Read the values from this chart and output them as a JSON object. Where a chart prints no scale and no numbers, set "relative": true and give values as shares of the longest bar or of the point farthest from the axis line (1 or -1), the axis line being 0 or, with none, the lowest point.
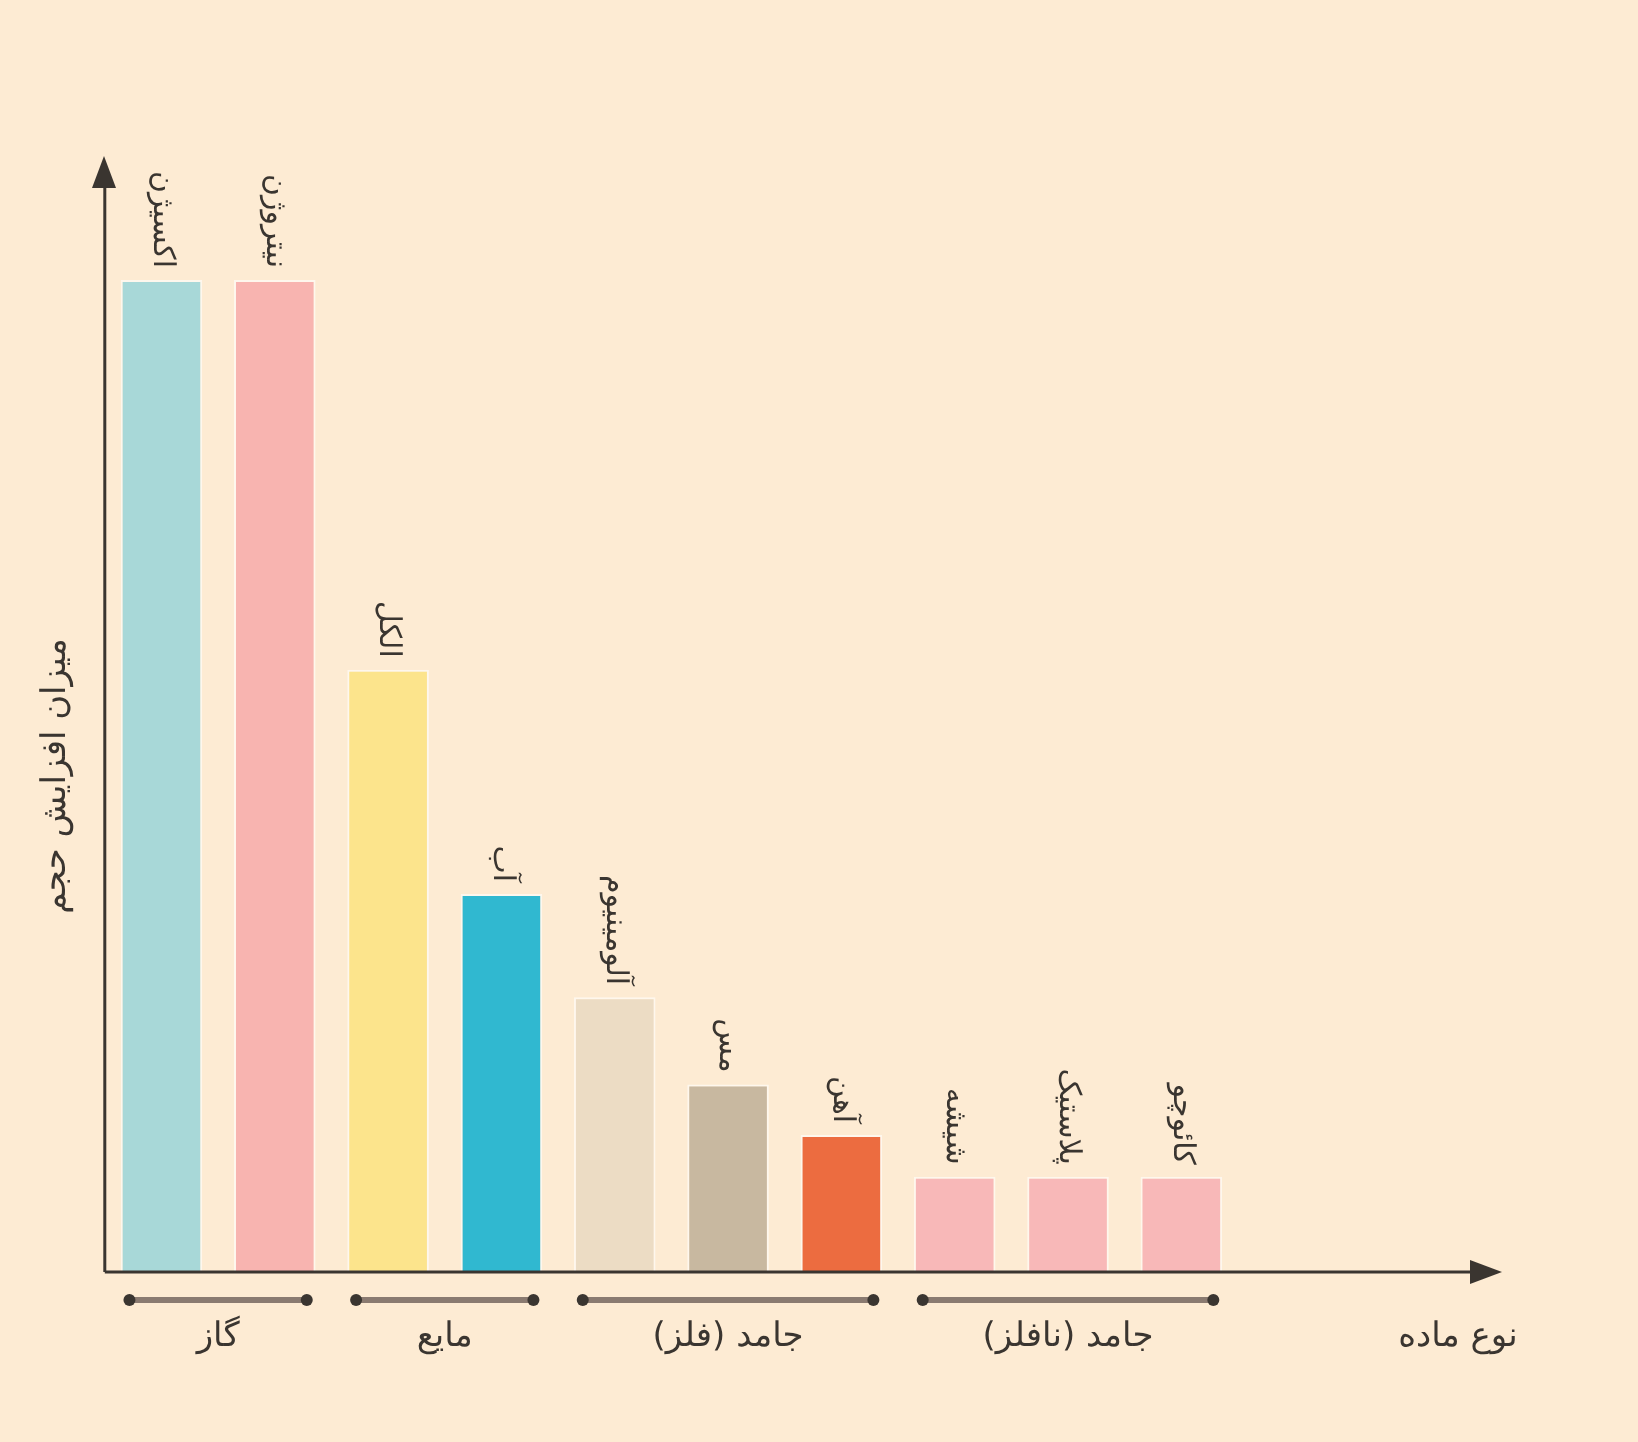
{
  "chart_data": {
    "type": "bar",
    "relative": true,
    "xlabel": "نوع ماده",
    "ylabel": "میزان افزایش حجم",
    "categories": [
      "اکسیژن",
      "نیتروژن",
      "الکل",
      "آب",
      "آلومینیوم",
      "مس",
      "آهن",
      "شیشه",
      "پلاستیک",
      "کائوچو"
    ],
    "values": [
      1,
      1,
      0.607,
      0.381,
      0.277,
      0.189,
      0.138,
      0.096,
      0.096,
      0.096
    ],
    "colors": [
      "#a8d8d8",
      "#f8b4b0",
      "#fce48c",
      "#30b8d0",
      "#ecdcc4",
      "#c8b8a0",
      "#ec6c40",
      "#f8b8b8",
      "#f8b8b8",
      "#f8b8b8"
    ],
    "annotations": [
      "گاز",
      "مایع",
      "جامد (فلز)",
      "جامد (نافلز)"
    ],
    "legend": false,
    "grid": false
  }
}
